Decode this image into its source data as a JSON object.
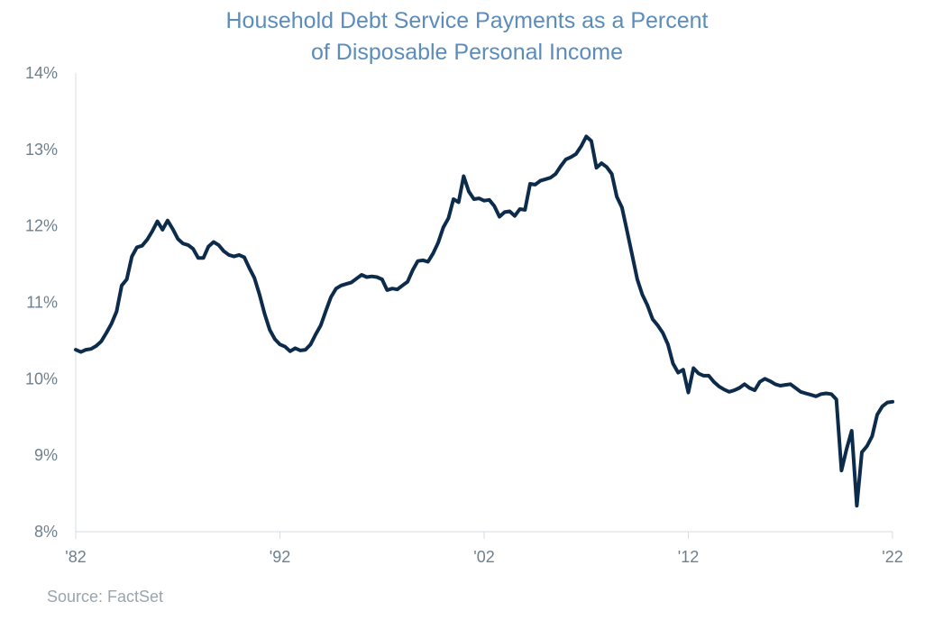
{
  "chart_data": {
    "type": "line",
    "title": "Household Debt Service Payments as a Percent",
    "subtitle": "of Disposable Personal Income",
    "xlabel": "",
    "ylabel": "",
    "ylim": [
      8,
      14
    ],
    "xlim": [
      1982,
      2022
    ],
    "y_ticks": [
      "8%",
      "9%",
      "10%",
      "11%",
      "12%",
      "13%",
      "14%"
    ],
    "x_ticks": [
      {
        "label": "'82",
        "value": 1982
      },
      {
        "label": "'92",
        "value": 1992
      },
      {
        "label": "'02",
        "value": 2002
      },
      {
        "label": "'12",
        "value": 2012
      },
      {
        "label": "'22",
        "value": 2022
      }
    ],
    "grid": false,
    "color": "#0d2b4a",
    "series": [
      {
        "x": [
          1982.0,
          1982.25,
          1982.5,
          1982.75,
          1983.0,
          1983.25,
          1983.5,
          1983.75,
          1984.0,
          1984.25,
          1984.5,
          1984.75,
          1985.0,
          1985.25,
          1985.5,
          1985.75,
          1986.0,
          1986.25,
          1986.5,
          1986.75,
          1987.0,
          1987.25,
          1987.5,
          1987.75,
          1988.0,
          1988.25,
          1988.5,
          1988.75,
          1989.0,
          1989.25,
          1989.5,
          1989.75,
          1990.0,
          1990.25,
          1990.5,
          1990.75,
          1991.0,
          1991.25,
          1991.5,
          1991.75,
          1992.0,
          1992.25,
          1992.5,
          1992.75,
          1993.0,
          1993.25,
          1993.5,
          1993.75,
          1994.0,
          1994.25,
          1994.5,
          1994.75,
          1995.0,
          1995.25,
          1995.5,
          1995.75,
          1996.0,
          1996.25,
          1996.5,
          1996.75,
          1997.0,
          1997.25,
          1997.5,
          1997.75,
          1998.0,
          1998.25,
          1998.5,
          1998.75,
          1999.0,
          1999.25,
          1999.5,
          1999.75,
          2000.0,
          2000.25,
          2000.5,
          2000.75,
          2001.0,
          2001.25,
          2001.5,
          2001.75,
          2002.0,
          2002.25,
          2002.5,
          2002.75,
          2003.0,
          2003.25,
          2003.5,
          2003.75,
          2004.0,
          2004.25,
          2004.5,
          2004.75,
          2005.0,
          2005.25,
          2005.5,
          2005.75,
          2006.0,
          2006.25,
          2006.5,
          2006.75,
          2007.0,
          2007.25,
          2007.5,
          2007.75,
          2008.0,
          2008.25,
          2008.5,
          2008.75,
          2009.0,
          2009.25,
          2009.5,
          2009.75,
          2010.0,
          2010.25,
          2010.5,
          2010.75,
          2011.0,
          2011.25,
          2011.5,
          2011.75,
          2012.0,
          2012.25,
          2012.5,
          2012.75,
          2013.0,
          2013.25,
          2013.5,
          2013.75,
          2014.0,
          2014.25,
          2014.5,
          2014.75,
          2015.0,
          2015.25,
          2015.5,
          2015.75,
          2016.0,
          2016.25,
          2016.5,
          2016.75,
          2017.0,
          2017.25,
          2017.5,
          2017.75,
          2018.0,
          2018.25,
          2018.5,
          2018.75,
          2019.0,
          2019.25,
          2019.5,
          2019.75,
          2020.0,
          2020.25,
          2020.5,
          2020.75,
          2021.0,
          2021.25,
          2021.5,
          2021.75,
          2022.0
        ],
        "values": [
          10.38,
          10.35,
          10.38,
          10.39,
          10.43,
          10.49,
          10.6,
          10.72,
          10.88,
          11.22,
          11.3,
          11.6,
          11.72,
          11.74,
          11.82,
          11.93,
          12.06,
          11.95,
          12.07,
          11.96,
          11.83,
          11.77,
          11.75,
          11.7,
          11.58,
          11.58,
          11.73,
          11.79,
          11.75,
          11.67,
          11.62,
          11.6,
          11.62,
          11.59,
          11.45,
          11.32,
          11.1,
          10.85,
          10.64,
          10.52,
          10.45,
          10.42,
          10.36,
          10.4,
          10.37,
          10.38,
          10.45,
          10.58,
          10.7,
          10.89,
          11.07,
          11.18,
          11.22,
          11.24,
          11.26,
          11.31,
          11.36,
          11.33,
          11.34,
          11.33,
          11.3,
          11.16,
          11.18,
          11.17,
          11.22,
          11.27,
          11.42,
          11.54,
          11.55,
          11.53,
          11.64,
          11.78,
          11.98,
          12.1,
          12.35,
          12.31,
          12.65,
          12.45,
          12.35,
          12.36,
          12.33,
          12.34,
          12.26,
          12.12,
          12.18,
          12.19,
          12.13,
          12.22,
          12.21,
          12.55,
          12.54,
          12.59,
          12.61,
          12.63,
          12.68,
          12.78,
          12.87,
          12.9,
          12.94,
          13.04,
          13.17,
          13.11,
          12.76,
          12.82,
          12.77,
          12.68,
          12.38,
          12.24,
          11.93,
          11.62,
          11.3,
          11.1,
          10.96,
          10.78,
          10.7,
          10.6,
          10.45,
          10.2,
          10.08,
          10.12,
          9.82,
          10.14,
          10.07,
          10.04,
          10.04,
          9.96,
          9.9,
          9.86,
          9.83,
          9.85,
          9.88,
          9.93,
          9.88,
          9.85,
          9.96,
          10.0,
          9.97,
          9.93,
          9.91,
          9.92,
          9.93,
          9.88,
          9.83,
          9.81,
          9.79,
          9.77,
          9.8,
          9.81,
          9.8,
          9.73,
          8.8,
          9.08,
          9.32,
          8.34,
          9.04,
          9.12,
          9.25,
          9.53,
          9.64,
          9.69,
          9.7
        ]
      }
    ]
  },
  "source": "Source: FactSet"
}
